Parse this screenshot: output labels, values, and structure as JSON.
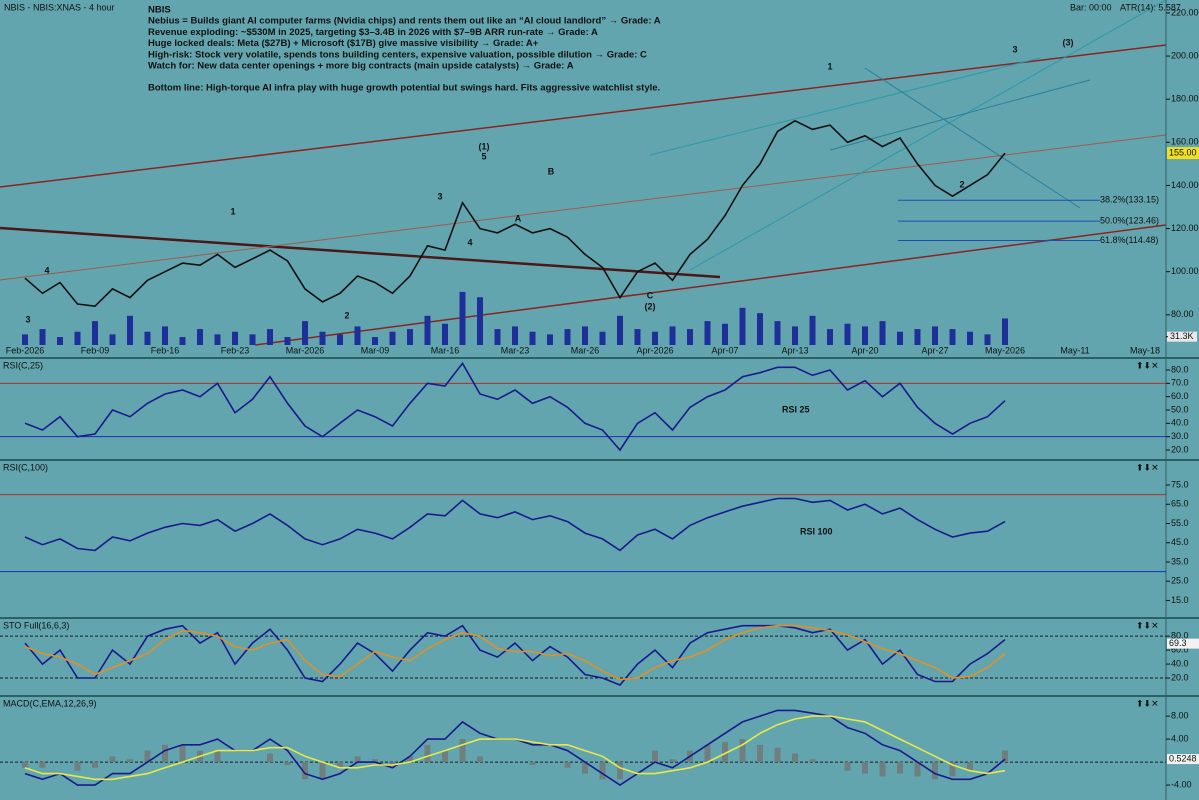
{
  "header": {
    "title": "NBIS - NBIS:XNAS - 4 hour",
    "bar": "Bar: 00:00",
    "atr": "ATR(14): 5.587"
  },
  "notes": [
    "NBIS",
    "Nebius = Builds giant AI computer farms (Nvidia chips) and rents them out like an “AI cloud landlord” → Grade: A",
    "Revenue exploding: ~$530M in 2025, targeting $3–3.4B in 2026 with $7–9B ARR run-rate → Grade: A",
    "Huge locked deals: Meta ($27B) + Microsoft ($17B) give massive visibility → Grade: A+",
    "High-risk: Stock very volatile, spends tons building centers, expensive valuation, possible dilution → Grade: C",
    "Watch for: New data center openings + more big contracts (main upside catalysts) → Grade: A",
    "Bottom line: High-torque AI infra play with huge growth potential but swings hard. Fits aggressive watchlist style."
  ],
  "chart_data": [
    {
      "type": "line",
      "categories": [
        "Feb-2026",
        null,
        null,
        null,
        "Feb-09",
        null,
        null,
        null,
        "Feb-16",
        null,
        null,
        null,
        "Feb-23",
        null,
        null,
        null,
        "Mar-2026",
        null,
        null,
        null,
        "Mar-09",
        null,
        null,
        null,
        "Mar-16",
        null,
        null,
        null,
        "Mar-23",
        null,
        null,
        null,
        "Mar-26",
        null,
        null,
        null,
        "Apr-2026",
        null,
        null,
        null,
        "Apr-07",
        null,
        null,
        null,
        "Apr-13",
        null,
        null,
        null,
        "Apr-20",
        null,
        null,
        null,
        "Apr-27",
        null,
        null,
        null,
        "May-2026",
        null,
        null,
        null,
        "May-11",
        null,
        null,
        null,
        "May-18"
      ],
      "series": [
        {
          "color": "#111111",
          "values": [
            97,
            90,
            95,
            85,
            84,
            92,
            88,
            96,
            100,
            104,
            103,
            108,
            102,
            106,
            110,
            105,
            92,
            86,
            90,
            98,
            95,
            90,
            98,
            112,
            110,
            132,
            120,
            118,
            122,
            118,
            120,
            116,
            108,
            102,
            88,
            100,
            104,
            96,
            108,
            115,
            126,
            140,
            150,
            165,
            170,
            166,
            168,
            160,
            163,
            158,
            162,
            150,
            140,
            135,
            140,
            145,
            155,
            null,
            null,
            null,
            null,
            null,
            null,
            null,
            null
          ]
        },
        {
          "type": "bar",
          "axis": "y2",
          "color": "#1f2f9a",
          "values": [
            40000,
            60000,
            30000,
            50000,
            90000,
            40000,
            110000,
            50000,
            70000,
            30000,
            60000,
            40000,
            50000,
            40000,
            60000,
            30000,
            90000,
            50000,
            40000,
            70000,
            30000,
            50000,
            60000,
            110000,
            80000,
            200000,
            180000,
            60000,
            70000,
            50000,
            40000,
            60000,
            70000,
            50000,
            110000,
            60000,
            50000,
            70000,
            60000,
            90000,
            80000,
            140000,
            120000,
            90000,
            70000,
            110000,
            60000,
            80000,
            70000,
            90000,
            50000,
            60000,
            70000,
            60000,
            50000,
            40000,
            100000,
            null,
            null,
            null,
            null,
            null,
            null,
            null,
            null
          ]
        }
      ],
      "ylim": [
        66,
        226
      ],
      "y2lim": [
        0,
        1300000
      ],
      "yticks": [
        {
          "value": 80,
          "label": "80.00"
        },
        {
          "value": 100,
          "label": "100.00"
        },
        {
          "value": 120,
          "label": "120.00"
        },
        {
          "value": 140,
          "label": "140.00"
        },
        {
          "value": 160,
          "label": "160.00"
        },
        {
          "value": 180,
          "label": "180.00"
        },
        {
          "value": 200,
          "label": "200.00"
        },
        {
          "value": 220,
          "label": "220.00"
        }
      ],
      "y2ticks": [
        {
          "value": 31300,
          "label": "31.3K"
        }
      ],
      "last_price": {
        "value": 155,
        "label": "155.00"
      },
      "fib_levels": [
        {
          "value": 133.15,
          "label": "38.2%(133.15)"
        },
        {
          "value": 123.46,
          "label": "50.0%(123.46)"
        },
        {
          "value": 114.48,
          "label": "61.8%(114.48)"
        }
      ],
      "annotations": [
        "1",
        "3",
        "(3)",
        "(1)",
        "5",
        "3",
        "4",
        "B",
        "A",
        "1",
        "4",
        "3",
        "2",
        "C",
        "(2)",
        "2"
      ]
    },
    {
      "type": "line",
      "title": "RSI(C,25)",
      "label": "RSI 25",
      "series": [
        {
          "color": "#1a1a8c",
          "values": [
            40,
            35,
            45,
            30,
            32,
            50,
            45,
            55,
            62,
            65,
            60,
            70,
            48,
            58,
            75,
            55,
            38,
            30,
            40,
            50,
            45,
            38,
            55,
            70,
            68,
            85,
            62,
            58,
            65,
            55,
            60,
            52,
            40,
            35,
            20,
            40,
            48,
            35,
            52,
            60,
            65,
            75,
            78,
            82,
            82,
            76,
            80,
            65,
            72,
            60,
            70,
            52,
            40,
            32,
            40,
            45,
            57
          ]
        }
      ],
      "ylim": [
        14,
        89
      ],
      "yticks": [
        {
          "value": 20,
          "label": "20.0"
        },
        {
          "value": 30,
          "label": "30.0"
        },
        {
          "value": 40,
          "label": "40.0"
        },
        {
          "value": 50,
          "label": "50.0"
        },
        {
          "value": 60,
          "label": "60.0"
        },
        {
          "value": 70,
          "label": "70.0"
        },
        {
          "value": 80,
          "label": "80.0"
        }
      ],
      "ref_lines": [
        {
          "value": 70,
          "color": "#b0302a"
        },
        {
          "value": 30,
          "color": "#1c2fb0"
        }
      ]
    },
    {
      "type": "line",
      "title": "RSI(C,100)",
      "label": "RSI 100",
      "series": [
        {
          "color": "#1a1a8c",
          "values": [
            48,
            44,
            47,
            42,
            41,
            48,
            46,
            50,
            53,
            55,
            54,
            57,
            51,
            55,
            60,
            54,
            47,
            44,
            47,
            52,
            50,
            47,
            53,
            60,
            59,
            67,
            60,
            58,
            61,
            57,
            59,
            56,
            50,
            47,
            41,
            49,
            52,
            47,
            54,
            58,
            61,
            64,
            66,
            68,
            68,
            66,
            67,
            62,
            65,
            60,
            63,
            57,
            52,
            48,
            50,
            51,
            56
          ]
        }
      ],
      "ylim": [
        9,
        88
      ],
      "yticks": [
        {
          "value": 15,
          "label": "15.0"
        },
        {
          "value": 25,
          "label": "25.0"
        },
        {
          "value": 35,
          "label": "35.0"
        },
        {
          "value": 45,
          "label": "45.0"
        },
        {
          "value": 55,
          "label": "55.0"
        },
        {
          "value": 65,
          "label": "65.0"
        },
        {
          "value": 75,
          "label": "75.0"
        }
      ],
      "ref_lines": [
        {
          "value": 70,
          "color": "#b0302a"
        },
        {
          "value": 30,
          "color": "#1c2fb0"
        }
      ]
    },
    {
      "type": "line",
      "title": "STO Full(16,6,3)",
      "series": [
        {
          "color": "#1a1a8c",
          "values": [
            70,
            40,
            60,
            20,
            20,
            60,
            40,
            80,
            90,
            95,
            70,
            85,
            40,
            70,
            90,
            60,
            20,
            15,
            40,
            70,
            55,
            30,
            60,
            85,
            80,
            95,
            60,
            50,
            70,
            45,
            65,
            50,
            25,
            20,
            10,
            40,
            60,
            35,
            70,
            85,
            90,
            95,
            95,
            95,
            92,
            85,
            90,
            60,
            75,
            40,
            60,
            25,
            15,
            15,
            40,
            55,
            75
          ]
        },
        {
          "color": "#e0902a",
          "values": [
            65,
            55,
            50,
            40,
            25,
            35,
            45,
            55,
            75,
            88,
            85,
            80,
            65,
            60,
            70,
            75,
            45,
            25,
            22,
            40,
            58,
            50,
            45,
            62,
            75,
            85,
            80,
            62,
            58,
            58,
            52,
            55,
            45,
            30,
            18,
            20,
            35,
            45,
            50,
            60,
            75,
            85,
            92,
            95,
            95,
            92,
            88,
            82,
            72,
            62,
            55,
            45,
            35,
            20,
            22,
            35,
            55
          ]
        }
      ],
      "ylim": [
        0,
        106
      ],
      "yticks": [
        {
          "value": 20,
          "label": "20.0"
        },
        {
          "value": 40,
          "label": "40.0"
        },
        {
          "value": 60,
          "label": "60.0"
        },
        {
          "value": 80,
          "label": "80.0"
        }
      ],
      "last_value": 69.3,
      "ref_lines": [
        {
          "value": 80,
          "color": "#1a1a1a"
        },
        {
          "value": 20,
          "color": "#1a1a1a"
        }
      ]
    },
    {
      "type": "line",
      "title": "MACD(C,EMA,12,26,9)",
      "series": [
        {
          "type": "bar",
          "color": "#6f7f80",
          "values": [
            -1,
            -1,
            0,
            -1.5,
            -1,
            1,
            0.5,
            2,
            3,
            3,
            2,
            2,
            0,
            0,
            1.5,
            -0.5,
            -3,
            -3,
            -1,
            1,
            0.5,
            -0.5,
            1,
            3,
            2,
            4,
            1,
            0,
            0,
            -0.5,
            0,
            -1,
            -2,
            -3,
            -3,
            0,
            2,
            0.5,
            2,
            3,
            3.5,
            4,
            3,
            2.5,
            1.5,
            0.5,
            0,
            -1.5,
            -2,
            -2.5,
            -2,
            -2.5,
            -3,
            -2.5,
            -1.5,
            0,
            2
          ]
        },
        {
          "color": "#1a1a8c",
          "values": [
            -2,
            -3,
            -2,
            -4,
            -4,
            -2,
            -2,
            0,
            2,
            3,
            3,
            4,
            2,
            2,
            4,
            2,
            -2,
            -3,
            -2,
            0,
            0,
            -1,
            1,
            4,
            4,
            7,
            5,
            4,
            4,
            3,
            3,
            2,
            0,
            -2,
            -4,
            -2,
            0,
            -1,
            1,
            3,
            5,
            7,
            8,
            9,
            9,
            8.5,
            8,
            6,
            5,
            3,
            2,
            0,
            -2,
            -3,
            -3,
            -2,
            0.5
          ]
        },
        {
          "color": "#e8e84a",
          "values": [
            -1,
            -2,
            -2,
            -2.5,
            -3,
            -3,
            -2.5,
            -2,
            -1,
            0,
            1,
            2,
            2,
            2,
            2.5,
            2.5,
            1,
            0,
            -1,
            -1,
            -0.5,
            -0.5,
            0,
            1,
            2,
            3,
            4,
            4,
            4,
            3.5,
            3,
            3,
            2,
            1,
            -1,
            -2,
            -2,
            -1.5,
            -1,
            0,
            1.5,
            3,
            5,
            6.5,
            7.5,
            8,
            8,
            7.5,
            7,
            5.5,
            4,
            2.5,
            1,
            -0.5,
            -1.5,
            -2,
            -1.5
          ]
        }
      ],
      "ylim": [
        -6.6,
        11.5
      ],
      "yticks": [
        {
          "value": -4,
          "label": "-4.00"
        },
        {
          "value": 4,
          "label": "4.00"
        },
        {
          "value": 8,
          "label": "8.00"
        }
      ],
      "last_value": 0.5248,
      "ref_lines": [
        {
          "value": 0,
          "color": "#1a1a1a"
        }
      ]
    }
  ]
}
